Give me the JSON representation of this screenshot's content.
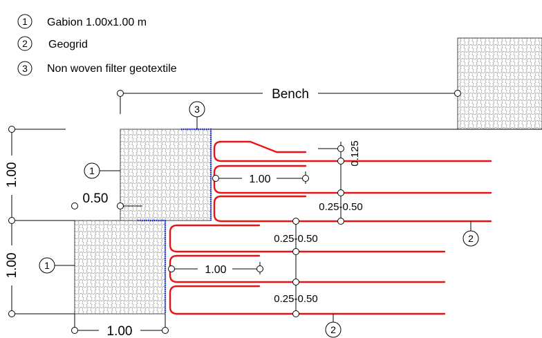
{
  "legend": [
    {
      "num": "1",
      "text": "Gabion 1.00x1.00 m"
    },
    {
      "num": "2",
      "text": "Geogrid"
    },
    {
      "num": "3",
      "text": "Non woven filter geotextile"
    }
  ],
  "labels": {
    "bench": "Bench",
    "dim_100_left_top": "1.00",
    "dim_100_left_bottom": "1.00",
    "dim_100_bottom": "1.00",
    "dim_050": "0.50",
    "dim_100_upper_geogrid": "1.00",
    "dim_100_lower_geogrid": "1.00",
    "dim_0125": "0.125",
    "spacing_1": "0.25-0.50",
    "spacing_2": "0.25-0.50",
    "spacing_3": "0.25-0.50"
  },
  "callouts": {
    "gabion_upper": "1",
    "gabion_lower": "1",
    "geotextile": "3",
    "geogrid_right": "2",
    "geogrid_bottom": "2"
  },
  "colors": {
    "geogrid": "#ee1111",
    "geotextile": "#1a2fd6",
    "gabion_fill": "#9a9a9a"
  }
}
